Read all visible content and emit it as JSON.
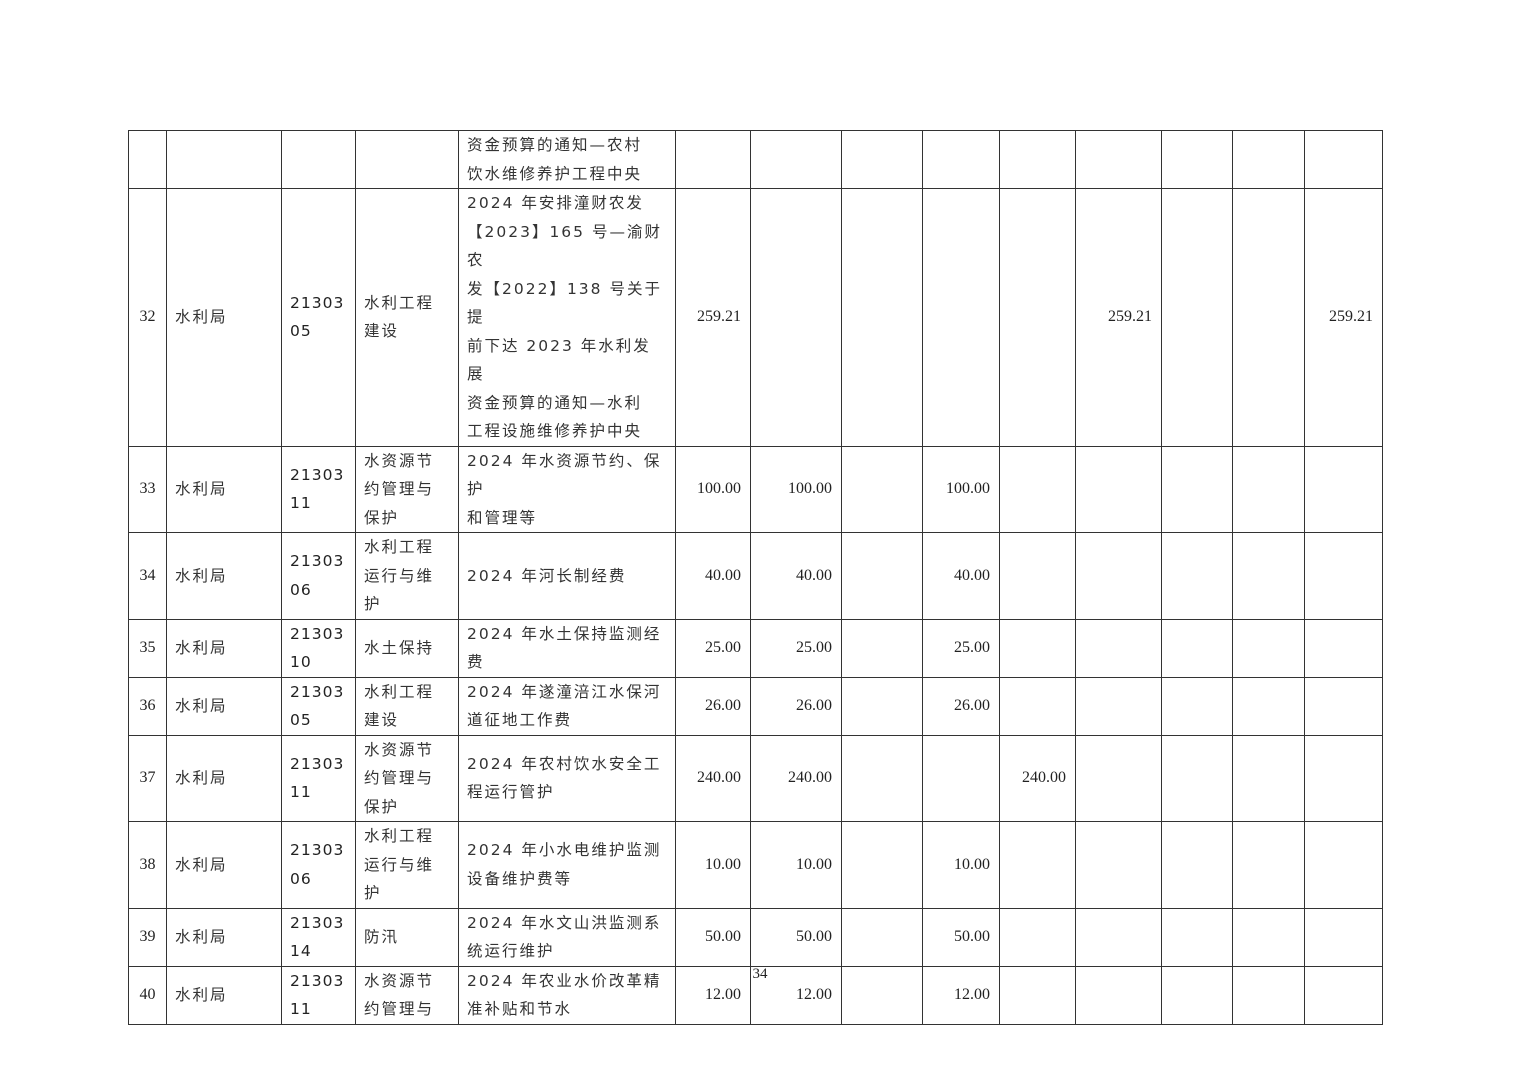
{
  "table": {
    "rows": [
      {
        "no": "",
        "dept": "",
        "code": "",
        "category": "",
        "project": "资金预算的通知—农村\n饮水维修养护工程中央",
        "values": [
          "",
          "",
          "",
          "",
          "",
          "",
          "",
          "",
          ""
        ]
      },
      {
        "no": "32",
        "dept": "水利局",
        "code": "21303\n05",
        "category": "水利工程\n建设",
        "project": "2024 年安排潼财农发\n【2023】165 号—渝财农\n发【2022】138 号关于提\n前下达 2023 年水利发展\n资金预算的通知—水利\n工程设施维修养护中央",
        "values": [
          "259.21",
          "",
          "",
          "",
          "",
          "259.21",
          "",
          "",
          "259.21"
        ]
      },
      {
        "no": "33",
        "dept": "水利局",
        "code": "21303\n11",
        "category": "水资源节\n约管理与\n保护",
        "project": "2024 年水资源节约、保护\n和管理等",
        "values": [
          "100.00",
          "100.00",
          "",
          "100.00",
          "",
          "",
          "",
          "",
          ""
        ]
      },
      {
        "no": "34",
        "dept": "水利局",
        "code": "21303\n06",
        "category": "水利工程\n运行与维\n护",
        "project": "2024 年河长制经费",
        "values": [
          "40.00",
          "40.00",
          "",
          "40.00",
          "",
          "",
          "",
          "",
          ""
        ]
      },
      {
        "no": "35",
        "dept": "水利局",
        "code": "21303\n10",
        "category": "水土保持",
        "project": "2024 年水土保持监测经\n费",
        "values": [
          "25.00",
          "25.00",
          "",
          "25.00",
          "",
          "",
          "",
          "",
          ""
        ]
      },
      {
        "no": "36",
        "dept": "水利局",
        "code": "21303\n05",
        "category": "水利工程\n建设",
        "project": "2024 年遂潼涪江水保河\n道征地工作费",
        "values": [
          "26.00",
          "26.00",
          "",
          "26.00",
          "",
          "",
          "",
          "",
          ""
        ]
      },
      {
        "no": "37",
        "dept": "水利局",
        "code": "21303\n11",
        "category": "水资源节\n约管理与\n保护",
        "project": "2024 年农村饮水安全工\n程运行管护",
        "values": [
          "240.00",
          "240.00",
          "",
          "",
          "240.00",
          "",
          "",
          "",
          ""
        ]
      },
      {
        "no": "38",
        "dept": "水利局",
        "code": "21303\n06",
        "category": "水利工程\n运行与维\n护",
        "project": "2024 年小水电维护监测\n设备维护费等",
        "values": [
          "10.00",
          "10.00",
          "",
          "10.00",
          "",
          "",
          "",
          "",
          ""
        ]
      },
      {
        "no": "39",
        "dept": "水利局",
        "code": "21303\n14",
        "category": "防汛",
        "project": "2024 年水文山洪监测系\n统运行维护",
        "values": [
          "50.00",
          "50.00",
          "",
          "50.00",
          "",
          "",
          "",
          "",
          ""
        ]
      },
      {
        "no": "40",
        "dept": "水利局",
        "code": "21303\n11",
        "category": "水资源节\n约管理与",
        "project": "2024 年农业水价改革精\n准补贴和节水",
        "values": [
          "12.00",
          "12.00",
          "",
          "12.00",
          "",
          "",
          "",
          "",
          ""
        ]
      }
    ]
  },
  "footer": {
    "page_number": "34"
  }
}
